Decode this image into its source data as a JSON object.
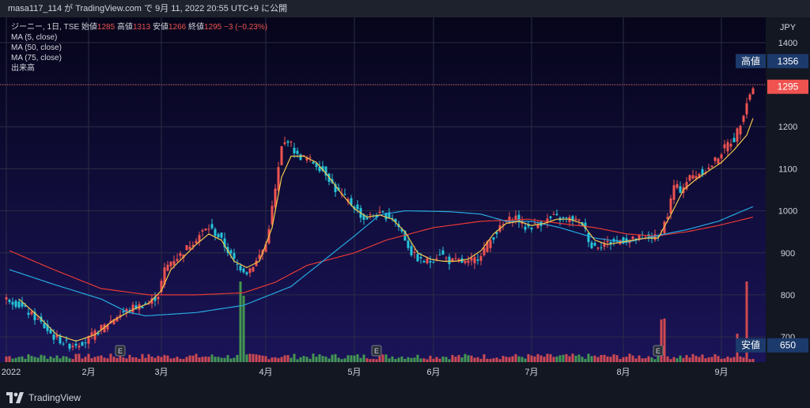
{
  "header": {
    "publish_line": "masa117_114 が TradingView.com で 9月 11, 2022 20:55 UTC+9 に公開"
  },
  "legend": {
    "symbol_line": "ジーニー, 1日, TSE",
    "open_label": "始値",
    "open": "1285",
    "high_label": "高値",
    "high": "1313",
    "low_label": "安値",
    "low": "1266",
    "close_label": "終値",
    "close": "1295",
    "change": "−3 (−0.23%)",
    "indicators": [
      "MA (5, close)",
      "MA (50, close)",
      "MA (75, close)",
      "出来高"
    ]
  },
  "axis": {
    "currency": "JPY",
    "y_ticks": [
      "1400",
      "1300",
      "1200",
      "1100",
      "1000",
      "900",
      "800",
      "700"
    ],
    "x_ticks": [
      "2022",
      "2月",
      "3月",
      "4月",
      "5月",
      "6月",
      "7月",
      "8月",
      "9月"
    ],
    "badges": [
      {
        "label": "高値",
        "value": "1356"
      },
      {
        "label": "",
        "value": "1295"
      },
      {
        "label": "安値",
        "value": "650"
      }
    ],
    "event_marker": "E"
  },
  "footer": {
    "brand": "TradingView"
  },
  "colors": {
    "bg_top": "#06051a",
    "bg_bottom": "#1a1458",
    "up": "#ef5350",
    "down": "#26c6da",
    "ma5": "#f2c94c",
    "ma50": "#26a9e0",
    "ma75": "#e53935",
    "vol_up": "#ef5350",
    "vol_down": "#4caf50"
  },
  "chart_data": {
    "type": "candlestick",
    "ylim": [
      640,
      1460
    ],
    "price_anchors": [
      [
        1,
        790
      ],
      [
        5,
        770
      ],
      [
        10,
        740
      ],
      [
        15,
        700
      ],
      [
        20,
        680
      ],
      [
        25,
        690
      ],
      [
        30,
        720
      ],
      [
        35,
        750
      ],
      [
        40,
        770
      ],
      [
        45,
        780
      ],
      [
        48,
        800
      ],
      [
        50,
        860
      ],
      [
        52,
        880
      ],
      [
        55,
        895
      ],
      [
        58,
        920
      ],
      [
        62,
        950
      ],
      [
        64,
        960
      ],
      [
        67,
        940
      ],
      [
        70,
        905
      ],
      [
        73,
        870
      ],
      [
        76,
        855
      ],
      [
        79,
        880
      ],
      [
        82,
        920
      ],
      [
        85,
        1050
      ],
      [
        87,
        1150
      ],
      [
        89,
        1170
      ],
      [
        92,
        1130
      ],
      [
        95,
        1125
      ],
      [
        98,
        1110
      ],
      [
        101,
        1090
      ],
      [
        104,
        1050
      ],
      [
        107,
        1030
      ],
      [
        110,
        1010
      ],
      [
        113,
        980
      ],
      [
        116,
        990
      ],
      [
        119,
        990
      ],
      [
        122,
        985
      ],
      [
        125,
        950
      ],
      [
        128,
        900
      ],
      [
        131,
        880
      ],
      [
        134,
        880
      ],
      [
        137,
        900
      ],
      [
        140,
        880
      ],
      [
        143,
        880
      ],
      [
        146,
        875
      ],
      [
        149,
        890
      ],
      [
        152,
        920
      ],
      [
        155,
        950
      ],
      [
        158,
        975
      ],
      [
        161,
        985
      ],
      [
        164,
        960
      ],
      [
        167,
        965
      ],
      [
        170,
        975
      ],
      [
        173,
        985
      ],
      [
        176,
        980
      ],
      [
        179,
        980
      ],
      [
        182,
        970
      ],
      [
        185,
        915
      ],
      [
        188,
        920
      ],
      [
        191,
        925
      ],
      [
        194,
        930
      ],
      [
        197,
        930
      ],
      [
        200,
        935
      ],
      [
        203,
        940
      ],
      [
        206,
        935
      ],
      [
        209,
        990
      ],
      [
        211,
        1060
      ],
      [
        213,
        1050
      ],
      [
        216,
        1080
      ],
      [
        219,
        1090
      ],
      [
        222,
        1100
      ],
      [
        225,
        1130
      ],
      [
        228,
        1160
      ],
      [
        230,
        1170
      ],
      [
        232,
        1210
      ],
      [
        234,
        1260
      ],
      [
        236,
        1295
      ]
    ],
    "ma5_anchors": [
      [
        4,
        790
      ],
      [
        10,
        750
      ],
      [
        16,
        705
      ],
      [
        22,
        690
      ],
      [
        28,
        705
      ],
      [
        34,
        740
      ],
      [
        40,
        765
      ],
      [
        45,
        780
      ],
      [
        49,
        810
      ],
      [
        52,
        860
      ],
      [
        56,
        890
      ],
      [
        60,
        920
      ],
      [
        64,
        945
      ],
      [
        68,
        930
      ],
      [
        72,
        880
      ],
      [
        76,
        865
      ],
      [
        80,
        880
      ],
      [
        84,
        960
      ],
      [
        87,
        1080
      ],
      [
        90,
        1130
      ],
      [
        94,
        1130
      ],
      [
        98,
        1115
      ],
      [
        102,
        1080
      ],
      [
        106,
        1040
      ],
      [
        110,
        1005
      ],
      [
        114,
        985
      ],
      [
        118,
        990
      ],
      [
        122,
        980
      ],
      [
        126,
        950
      ],
      [
        130,
        900
      ],
      [
        134,
        885
      ],
      [
        138,
        880
      ],
      [
        142,
        880
      ],
      [
        146,
        885
      ],
      [
        150,
        905
      ],
      [
        154,
        945
      ],
      [
        158,
        970
      ],
      [
        162,
        975
      ],
      [
        166,
        965
      ],
      [
        170,
        970
      ],
      [
        174,
        980
      ],
      [
        178,
        980
      ],
      [
        182,
        970
      ],
      [
        186,
        930
      ],
      [
        190,
        920
      ],
      [
        194,
        925
      ],
      [
        198,
        930
      ],
      [
        202,
        935
      ],
      [
        206,
        935
      ],
      [
        210,
        990
      ],
      [
        214,
        1050
      ],
      [
        218,
        1075
      ],
      [
        222,
        1095
      ],
      [
        226,
        1115
      ],
      [
        230,
        1145
      ],
      [
        234,
        1180
      ],
      [
        236,
        1220
      ]
    ],
    "ma50_anchors": [
      [
        1,
        860
      ],
      [
        15,
        825
      ],
      [
        30,
        790
      ],
      [
        38,
        760
      ],
      [
        44,
        750
      ],
      [
        60,
        758
      ],
      [
        75,
        775
      ],
      [
        90,
        820
      ],
      [
        100,
        880
      ],
      [
        110,
        940
      ],
      [
        118,
        990
      ],
      [
        126,
        1000
      ],
      [
        140,
        998
      ],
      [
        150,
        992
      ],
      [
        158,
        975
      ],
      [
        166,
        975
      ],
      [
        175,
        960
      ],
      [
        186,
        935
      ],
      [
        196,
        925
      ],
      [
        205,
        940
      ],
      [
        215,
        955
      ],
      [
        225,
        975
      ],
      [
        236,
        1010
      ]
    ],
    "ma75_anchors": [
      [
        1,
        905
      ],
      [
        15,
        860
      ],
      [
        30,
        815
      ],
      [
        45,
        800
      ],
      [
        60,
        800
      ],
      [
        75,
        805
      ],
      [
        85,
        830
      ],
      [
        95,
        870
      ],
      [
        110,
        900
      ],
      [
        120,
        930
      ],
      [
        135,
        960
      ],
      [
        150,
        975
      ],
      [
        165,
        980
      ],
      [
        175,
        970
      ],
      [
        186,
        960
      ],
      [
        196,
        945
      ],
      [
        205,
        940
      ],
      [
        215,
        950
      ],
      [
        225,
        965
      ],
      [
        236,
        985
      ]
    ],
    "high_marker": 1356,
    "last_price": 1295,
    "low_marker": 650,
    "high_dotted_line": 1300,
    "gridlines": [
      1400,
      1300,
      1200,
      1100,
      1000,
      900,
      800,
      700
    ],
    "month_starts": [
      0,
      26,
      49,
      82,
      110,
      135,
      166,
      195,
      226
    ],
    "event_bars": [
      36,
      117,
      206
    ],
    "volume_spikes": [
      [
        74,
        0.85
      ],
      [
        75,
        0.7
      ],
      [
        207,
        0.45
      ],
      [
        208,
        0.46
      ],
      [
        231,
        0.3
      ],
      [
        234,
        0.85
      ]
    ]
  }
}
